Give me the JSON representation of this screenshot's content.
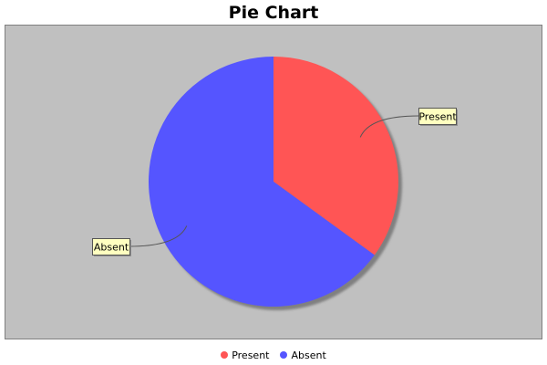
{
  "chart_data": {
    "type": "pie",
    "title": "Pie Chart",
    "slices": [
      {
        "label": "Present",
        "value": 35,
        "color": "#ff5555"
      },
      {
        "label": "Absent",
        "value": 65,
        "color": "#5555ff"
      }
    ],
    "legend_position": "bottom",
    "plot_background": "#c0c0c0",
    "label_background": "#ffffc0"
  }
}
